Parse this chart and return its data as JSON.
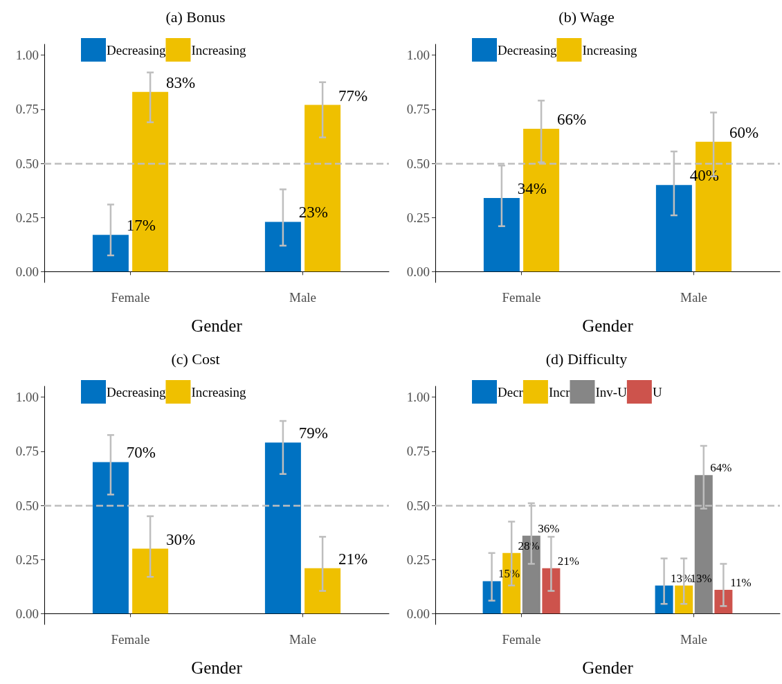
{
  "chart_data": [
    {
      "type": "bar",
      "title": "(a) Bonus",
      "xlabel": "Gender",
      "categories": [
        "Female",
        "Male"
      ],
      "legend": "top left",
      "ylim": [
        -0.05,
        1.05
      ],
      "yticks": [
        {
          "value": 0,
          "label": "0.00"
        },
        {
          "value": 0.25,
          "label": "0.25"
        },
        {
          "value": 0.5,
          "label": "0.50"
        },
        {
          "value": 0.75,
          "label": "0.75"
        },
        {
          "value": 1,
          "label": "1.00"
        }
      ],
      "ref_lines": [
        {
          "axis": "y",
          "value": 0.5,
          "color": "#bebebe",
          "line_style": "dashed"
        }
      ],
      "series": [
        {
          "name": "Decreasing",
          "color": "#0072c2",
          "values": [
            0.17,
            0.23
          ],
          "errors": [
            [
              0.075,
              0.31
            ],
            [
              0.12,
              0.38
            ]
          ],
          "value_labels": [
            "17%",
            "23%"
          ]
        },
        {
          "name": "Increasing",
          "color": "#efc000",
          "values": [
            0.83,
            0.77
          ],
          "errors": [
            [
              0.69,
              0.92
            ],
            [
              0.62,
              0.875
            ]
          ],
          "value_labels": [
            "83%",
            "77%"
          ]
        }
      ]
    },
    {
      "type": "bar",
      "title": "(b) Wage",
      "xlabel": "Gender",
      "categories": [
        "Female",
        "Male"
      ],
      "legend": "top left",
      "ylim": [
        -0.05,
        1.05
      ],
      "yticks": [
        {
          "value": 0,
          "label": "0.00"
        },
        {
          "value": 0.25,
          "label": "0.25"
        },
        {
          "value": 0.5,
          "label": "0.50"
        },
        {
          "value": 0.75,
          "label": "0.75"
        },
        {
          "value": 1,
          "label": "1.00"
        }
      ],
      "ref_lines": [
        {
          "axis": "y",
          "value": 0.5,
          "color": "#bebebe",
          "line_style": "dashed"
        }
      ],
      "series": [
        {
          "name": "Decreasing",
          "color": "#0072c2",
          "values": [
            0.34,
            0.4
          ],
          "errors": [
            [
              0.21,
              0.49
            ],
            [
              0.26,
              0.555
            ]
          ],
          "value_labels": [
            "34%",
            "40%"
          ]
        },
        {
          "name": "Increasing",
          "color": "#efc000",
          "values": [
            0.66,
            0.6
          ],
          "errors": [
            [
              0.505,
              0.79
            ],
            [
              0.44,
              0.735
            ]
          ],
          "value_labels": [
            "66%",
            "60%"
          ]
        }
      ]
    },
    {
      "type": "bar",
      "title": "(c) Cost",
      "xlabel": "Gender",
      "categories": [
        "Female",
        "Male"
      ],
      "legend": "top left",
      "ylim": [
        -0.05,
        1.05
      ],
      "yticks": [
        {
          "value": 0,
          "label": "0.00"
        },
        {
          "value": 0.25,
          "label": "0.25"
        },
        {
          "value": 0.5,
          "label": "0.50"
        },
        {
          "value": 0.75,
          "label": "0.75"
        },
        {
          "value": 1,
          "label": "1.00"
        }
      ],
      "ref_lines": [
        {
          "axis": "y",
          "value": 0.5,
          "color": "#bebebe",
          "line_style": "dashed"
        }
      ],
      "series": [
        {
          "name": "Decreasing",
          "color": "#0072c2",
          "values": [
            0.7,
            0.79
          ],
          "errors": [
            [
              0.55,
              0.825
            ],
            [
              0.645,
              0.89
            ]
          ],
          "value_labels": [
            "70%",
            "79%"
          ]
        },
        {
          "name": "Increasing",
          "color": "#efc000",
          "values": [
            0.3,
            0.21
          ],
          "errors": [
            [
              0.17,
              0.45
            ],
            [
              0.105,
              0.355
            ]
          ],
          "value_labels": [
            "30%",
            "21%"
          ]
        }
      ]
    },
    {
      "type": "bar",
      "title": "(d) Difficulty",
      "xlabel": "Gender",
      "categories": [
        "Female",
        "Male"
      ],
      "legend": "top left",
      "ylim": [
        -0.05,
        1.05
      ],
      "yticks": [
        {
          "value": 0,
          "label": "0.00"
        },
        {
          "value": 0.25,
          "label": "0.25"
        },
        {
          "value": 0.5,
          "label": "0.50"
        },
        {
          "value": 0.75,
          "label": "0.75"
        },
        {
          "value": 1,
          "label": "1.00"
        }
      ],
      "ref_lines": [
        {
          "axis": "y",
          "value": 0.5,
          "color": "#bebebe",
          "line_style": "dashed"
        }
      ],
      "series": [
        {
          "name": "Decr",
          "color": "#0072c2",
          "values": [
            0.15,
            0.13
          ],
          "errors": [
            [
              0.06,
              0.28
            ],
            [
              0.045,
              0.255
            ]
          ],
          "value_labels": [
            "15%",
            "13%"
          ]
        },
        {
          "name": "Incr",
          "color": "#efc000",
          "values": [
            0.28,
            0.13
          ],
          "errors": [
            [
              0.13,
              0.425
            ],
            [
              0.045,
              0.255
            ]
          ],
          "value_labels": [
            "28%",
            "13%"
          ]
        },
        {
          "name": "Inv-U",
          "color": "#868686",
          "values": [
            0.36,
            0.64
          ],
          "errors": [
            [
              0.23,
              0.51
            ],
            [
              0.485,
              0.775
            ]
          ],
          "value_labels": [
            "36%",
            "64%"
          ]
        },
        {
          "name": "U",
          "color": "#cd534c",
          "values": [
            0.21,
            0.11
          ],
          "errors": [
            [
              0.105,
              0.355
            ],
            [
              0.035,
              0.23
            ]
          ],
          "value_labels": [
            "21%",
            "11%"
          ]
        }
      ]
    }
  ]
}
